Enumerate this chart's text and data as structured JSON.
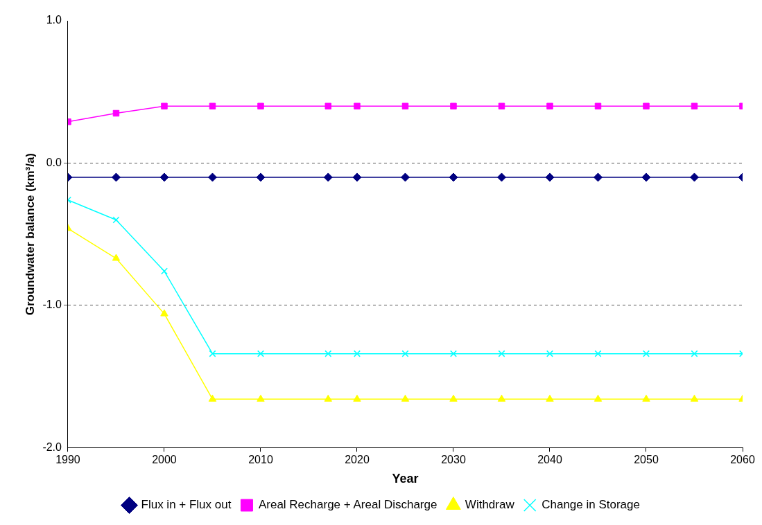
{
  "chart_data": {
    "type": "line",
    "xlabel": "Year",
    "ylabel": "Groundwater balance (km³/a)",
    "x": [
      1990,
      1995,
      2000,
      2005,
      2010,
      2017,
      2020,
      2025,
      2030,
      2035,
      2040,
      2045,
      2050,
      2055,
      2060
    ],
    "xlim": [
      1990,
      2060
    ],
    "xticks": [
      1990,
      2000,
      2010,
      2020,
      2030,
      2040,
      2050,
      2060
    ],
    "ylim": [
      -2,
      1
    ],
    "yticks": [
      {
        "value": -2,
        "label": "-2.0"
      },
      {
        "value": -1,
        "label": "-1.0"
      },
      {
        "value": 0,
        "label": "0.0"
      },
      {
        "value": 1,
        "label": "1.0"
      }
    ],
    "grid": "y",
    "legend": "bottom",
    "line_style": "solid",
    "series": [
      {
        "name": "Flux in + Flux out",
        "color": "#000080",
        "marker": "diamond",
        "values": [
          -0.1,
          -0.1,
          -0.1,
          -0.1,
          -0.1,
          -0.1,
          -0.1,
          -0.1,
          -0.1,
          -0.1,
          -0.1,
          -0.1,
          -0.1,
          -0.1,
          -0.1
        ]
      },
      {
        "name": "Areal Recharge + Areal Discharge",
        "color": "#ff00ff",
        "marker": "square",
        "values": [
          0.29,
          0.35,
          0.4,
          0.4,
          0.4,
          0.4,
          0.4,
          0.4,
          0.4,
          0.4,
          0.4,
          0.4,
          0.4,
          0.4,
          0.4
        ]
      },
      {
        "name": "Withdraw",
        "color": "#ffff00",
        "marker": "triangle",
        "values": [
          -0.46,
          -0.67,
          -1.06,
          -1.66,
          -1.66,
          -1.66,
          -1.66,
          -1.66,
          -1.66,
          -1.66,
          -1.66,
          -1.66,
          -1.66,
          -1.66,
          -1.66
        ]
      },
      {
        "name": "Change in Storage",
        "color": "#00ffff",
        "marker": "cross",
        "values": [
          -0.26,
          -0.4,
          -0.76,
          -1.34,
          -1.34,
          -1.34,
          -1.34,
          -1.34,
          -1.34,
          -1.34,
          -1.34,
          -1.34,
          -1.34,
          -1.34,
          -1.34
        ]
      }
    ]
  }
}
